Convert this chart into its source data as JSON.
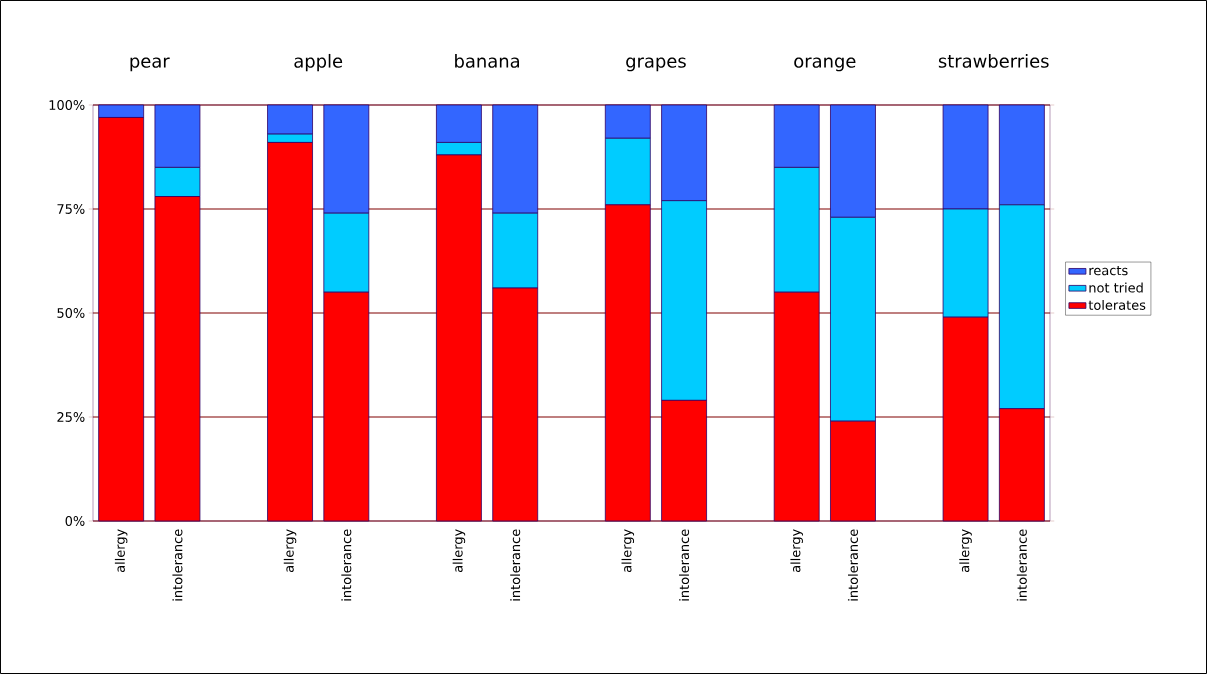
{
  "chart_data": {
    "type": "bar",
    "stacked": true,
    "categories": [
      "allergy",
      "intolerance",
      null,
      "allergy",
      "intolerance",
      null,
      "allergy",
      "intolerance",
      null,
      "allergy",
      "intolerance",
      null,
      "allergy",
      "intolerance",
      null,
      "allergy",
      "intolerance"
    ],
    "series": [
      {
        "name": "tolerates",
        "color": "#ff0000",
        "values": [
          97,
          78,
          null,
          91,
          55,
          null,
          88,
          56,
          null,
          76,
          29,
          null,
          55,
          24,
          null,
          49,
          27
        ]
      },
      {
        "name": "not tried",
        "color": "#00ccff",
        "values": [
          0,
          7,
          null,
          2,
          19,
          null,
          3,
          18,
          null,
          16,
          48,
          null,
          30,
          49,
          null,
          26,
          49
        ]
      },
      {
        "name": "reacts",
        "color": "#3366ff",
        "values": [
          3,
          15,
          null,
          7,
          26,
          null,
          9,
          26,
          null,
          8,
          23,
          null,
          15,
          27,
          null,
          25,
          24
        ]
      }
    ],
    "ylim": [
      0,
      100
    ],
    "yticks": [
      {
        "value": 0,
        "label": "0%"
      },
      {
        "value": 25,
        "label": "25%"
      },
      {
        "value": 50,
        "label": "50%"
      },
      {
        "value": 75,
        "label": "75%"
      },
      {
        "value": 100,
        "label": "100%"
      }
    ],
    "grid": "y",
    "legend": "right",
    "annotations": [
      "pear",
      "apple",
      "banana",
      "grapes",
      "orange",
      "strawberries"
    ]
  }
}
